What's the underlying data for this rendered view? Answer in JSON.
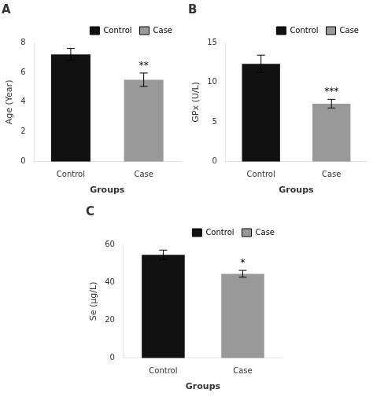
{
  "chart_data": [
    {
      "type": "bar",
      "title": "A",
      "categories": [
        "Control",
        "Case"
      ],
      "values": [
        7.2,
        5.5
      ],
      "errors": [
        0.4,
        0.45
      ],
      "colors": [
        "#111111",
        "#999999"
      ],
      "xlabel": "Groups",
      "ylabel": "Age (Year)",
      "ylim": [
        0,
        8
      ],
      "yticks": [
        0,
        2,
        4,
        6,
        8
      ],
      "annotations": [
        {
          "category": "Case",
          "text": "**"
        }
      ],
      "legend": "upper right",
      "grid": false
    },
    {
      "type": "bar",
      "title": "B",
      "categories": [
        "Control",
        "Case"
      ],
      "values": [
        12.3,
        7.3
      ],
      "errors": [
        1.1,
        0.55
      ],
      "colors": [
        "#111111",
        "#999999"
      ],
      "xlabel": "Groups",
      "ylabel": "GPx (U/L)",
      "ylim": [
        0,
        15
      ],
      "yticks": [
        0,
        5,
        10,
        15
      ],
      "annotations": [
        {
          "category": "Case",
          "text": "***"
        }
      ],
      "legend": "upper right",
      "grid": false
    },
    {
      "type": "bar",
      "title": "C",
      "categories": [
        "Control",
        "Case"
      ],
      "values": [
        54.5,
        44.5
      ],
      "errors": [
        2.5,
        1.8
      ],
      "colors": [
        "#111111",
        "#999999"
      ],
      "xlabel": "Groups",
      "ylabel": "Se (μg/L)",
      "ylim": [
        0,
        60
      ],
      "yticks": [
        0,
        20,
        40,
        60
      ],
      "annotations": [
        {
          "category": "Case",
          "text": "*"
        }
      ],
      "legend": "upper right",
      "grid": false
    }
  ]
}
